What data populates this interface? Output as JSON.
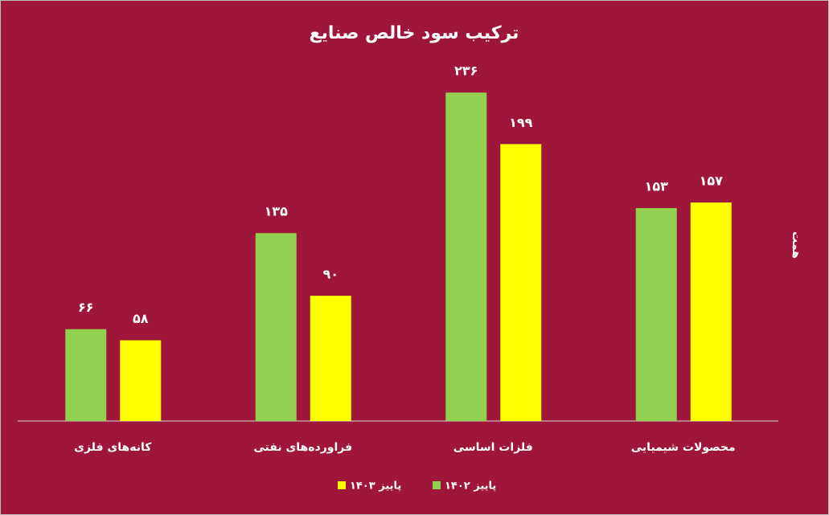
{
  "chart_data": {
    "type": "bar",
    "title": "ترکیب سود خالص صنایع",
    "y_label": "همت",
    "categories": [
      "کانه‌های فلزی",
      "فراورده‌های نفتی",
      "فلزات اساسی",
      "محصولات شیمیایی"
    ],
    "series": [
      {
        "name": "پاییز ۱۴۰۲",
        "color": "#92d050",
        "values": [
          66,
          135,
          236,
          153
        ],
        "value_labels": [
          "۶۶",
          "۱۳۵",
          "۲۳۶",
          "۱۵۳"
        ]
      },
      {
        "name": "پاییز ۱۴۰۳",
        "color": "#ffff00",
        "values": [
          58,
          90,
          199,
          157
        ],
        "value_labels": [
          "۵۸",
          "۹۰",
          "۱۹۹",
          "۱۵۷"
        ]
      }
    ],
    "ylim": [
      0,
      250
    ]
  }
}
